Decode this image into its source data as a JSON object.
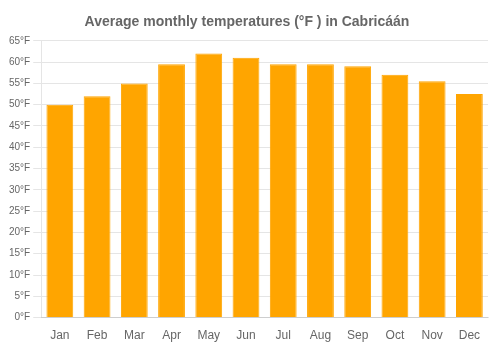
{
  "chart_data": {
    "type": "bar",
    "title": "Average monthly temperatures (°F ) in Cabricáán",
    "categories": [
      "Jan",
      "Feb",
      "Mar",
      "Apr",
      "May",
      "Jun",
      "Jul",
      "Aug",
      "Sep",
      "Oct",
      "Nov",
      "Dec"
    ],
    "values": [
      50,
      52,
      55,
      59.5,
      62,
      61,
      59.5,
      59.5,
      59,
      57,
      55.5,
      52.5
    ],
    "color": "#FFA500",
    "ylim": [
      0,
      65
    ],
    "yticks": [
      {
        "value": 0,
        "label": "0°F"
      },
      {
        "value": 5,
        "label": "5°F"
      },
      {
        "value": 10,
        "label": "10°F"
      },
      {
        "value": 15,
        "label": "15°F"
      },
      {
        "value": 20,
        "label": "20°F"
      },
      {
        "value": 25,
        "label": "25°F"
      },
      {
        "value": 30,
        "label": "30°F"
      },
      {
        "value": 35,
        "label": "35°F"
      },
      {
        "value": 40,
        "label": "40°F"
      },
      {
        "value": 45,
        "label": "45°F"
      },
      {
        "value": 50,
        "label": "50°F"
      },
      {
        "value": 55,
        "label": "55°F"
      },
      {
        "value": 60,
        "label": "60°F"
      },
      {
        "value": 65,
        "label": "65°F"
      }
    ],
    "grid": true
  }
}
